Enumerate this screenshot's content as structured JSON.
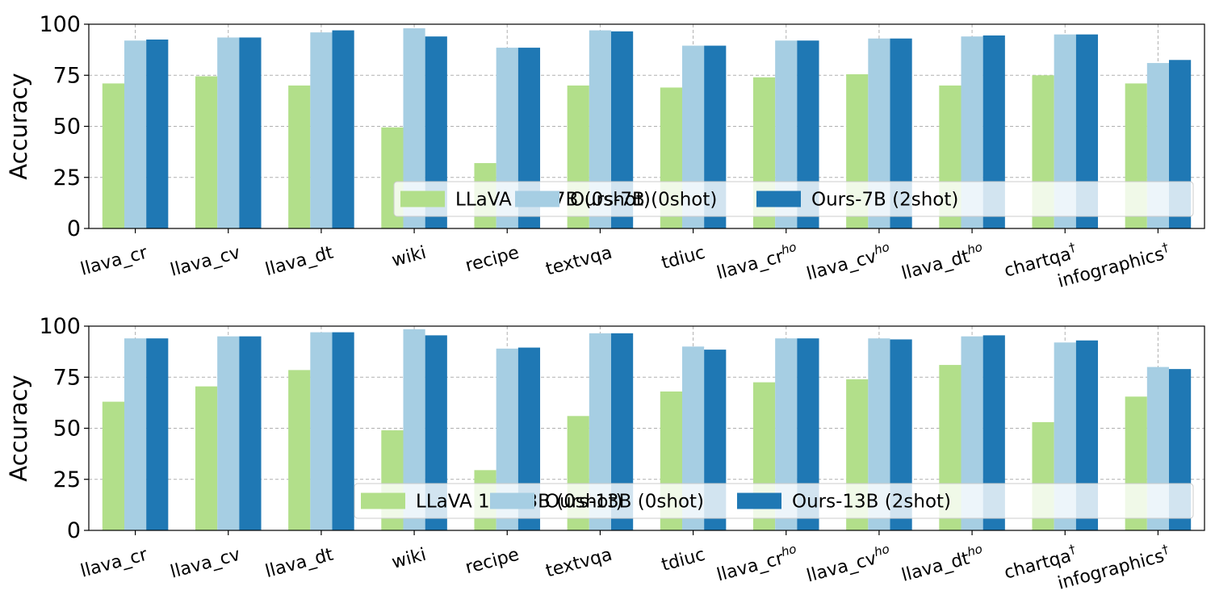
{
  "chart_data": [
    {
      "type": "bar",
      "ylabel": "Accuracy",
      "ylim": [
        0,
        100
      ],
      "yticks": [
        "0",
        "25",
        "50",
        "75",
        "100"
      ],
      "grid": true,
      "legend_position": "lower-right",
      "categories": [
        "llava_cr",
        "llava_cv",
        "llava_dt",
        "wiki",
        "recipe",
        "textvqa",
        "tdiuc",
        "llava_cr",
        "llava_cv",
        "llava_dt",
        "chartqa",
        "infographics"
      ],
      "category_superscripts": [
        "",
        "",
        "",
        "",
        "",
        "",
        "",
        "ho",
        "ho",
        "ho",
        "†",
        "†"
      ],
      "series": [
        {
          "name": "LLaVA 1.5-7B (0shot)",
          "color": "#b2df8a",
          "values": [
            71,
            74.5,
            70,
            49.5,
            32,
            70,
            69,
            74,
            75.5,
            70,
            75,
            71
          ]
        },
        {
          "name": "Ours-7B (0shot)",
          "color": "#a6cee3",
          "values": [
            92,
            93.5,
            96,
            98,
            88.5,
            97,
            89.5,
            92,
            93,
            94,
            95,
            81
          ]
        },
        {
          "name": "Ours-7B (2shot)",
          "color": "#1f78b4",
          "values": [
            92.5,
            93.5,
            97,
            94,
            88.5,
            96.5,
            89.5,
            92,
            93,
            94.5,
            95,
            82.5
          ]
        }
      ]
    },
    {
      "type": "bar",
      "ylabel": "Accuracy",
      "ylim": [
        0,
        100
      ],
      "yticks": [
        "0",
        "25",
        "50",
        "75",
        "100"
      ],
      "grid": true,
      "legend_position": "lower-right",
      "categories": [
        "llava_cr",
        "llava_cv",
        "llava_dt",
        "wiki",
        "recipe",
        "textvqa",
        "tdiuc",
        "llava_cr",
        "llava_cv",
        "llava_dt",
        "chartqa",
        "infographics"
      ],
      "category_superscripts": [
        "",
        "",
        "",
        "",
        "",
        "",
        "",
        "ho",
        "ho",
        "ho",
        "†",
        "†"
      ],
      "series": [
        {
          "name": "LLaVA 1.5-13B (0shot)",
          "color": "#b2df8a",
          "values": [
            63,
            70.5,
            78.5,
            49,
            29.5,
            56,
            68,
            72.5,
            74,
            81,
            53,
            65.5
          ]
        },
        {
          "name": "Ours-13B (0shot)",
          "color": "#a6cee3",
          "values": [
            94,
            95,
            97,
            98.5,
            89,
            96.5,
            90,
            94,
            94,
            95,
            92,
            80
          ]
        },
        {
          "name": "Ours-13B (2shot)",
          "color": "#1f78b4",
          "values": [
            94,
            95,
            97,
            95.5,
            89.5,
            96.5,
            88.5,
            94,
            93.5,
            95.5,
            93,
            79
          ]
        }
      ]
    }
  ]
}
